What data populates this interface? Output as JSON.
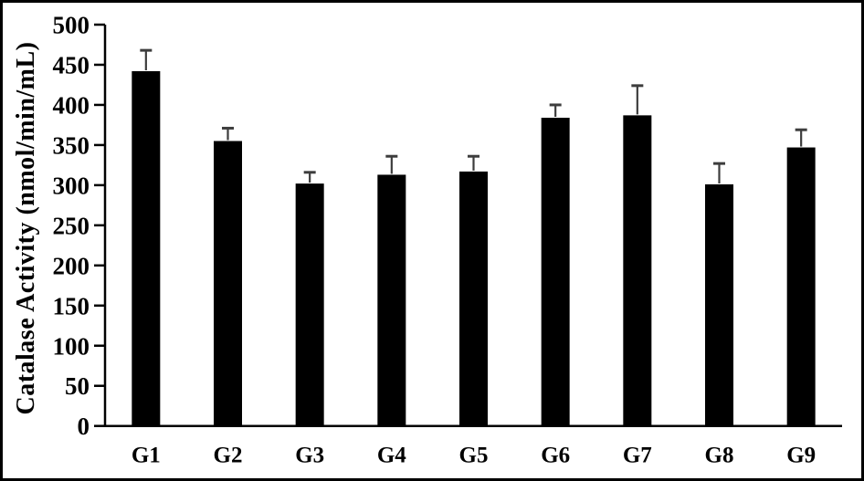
{
  "chart_data": {
    "type": "bar",
    "title": "",
    "xlabel": "",
    "ylabel": "Catalase Activity (nmol/min/mL)",
    "categories": [
      "G1",
      "G2",
      "G3",
      "G4",
      "G5",
      "G6",
      "G7",
      "G8",
      "G9"
    ],
    "values": [
      442,
      355,
      302,
      313,
      317,
      384,
      387,
      301,
      347
    ],
    "errors_plus": [
      26,
      16,
      14,
      23,
      19,
      16,
      37,
      26,
      22
    ],
    "ylim": [
      0,
      500
    ],
    "yticks": [
      0,
      50,
      100,
      150,
      200,
      250,
      300,
      350,
      400,
      450,
      500
    ],
    "grid": false,
    "legend_position": "none",
    "colors": {
      "bar_fill": "#000000",
      "error_bar": "#3d3d3d",
      "axis": "#000000",
      "tick_label": "#000000",
      "background": "#ffffff",
      "frame_border": "#000000"
    }
  }
}
